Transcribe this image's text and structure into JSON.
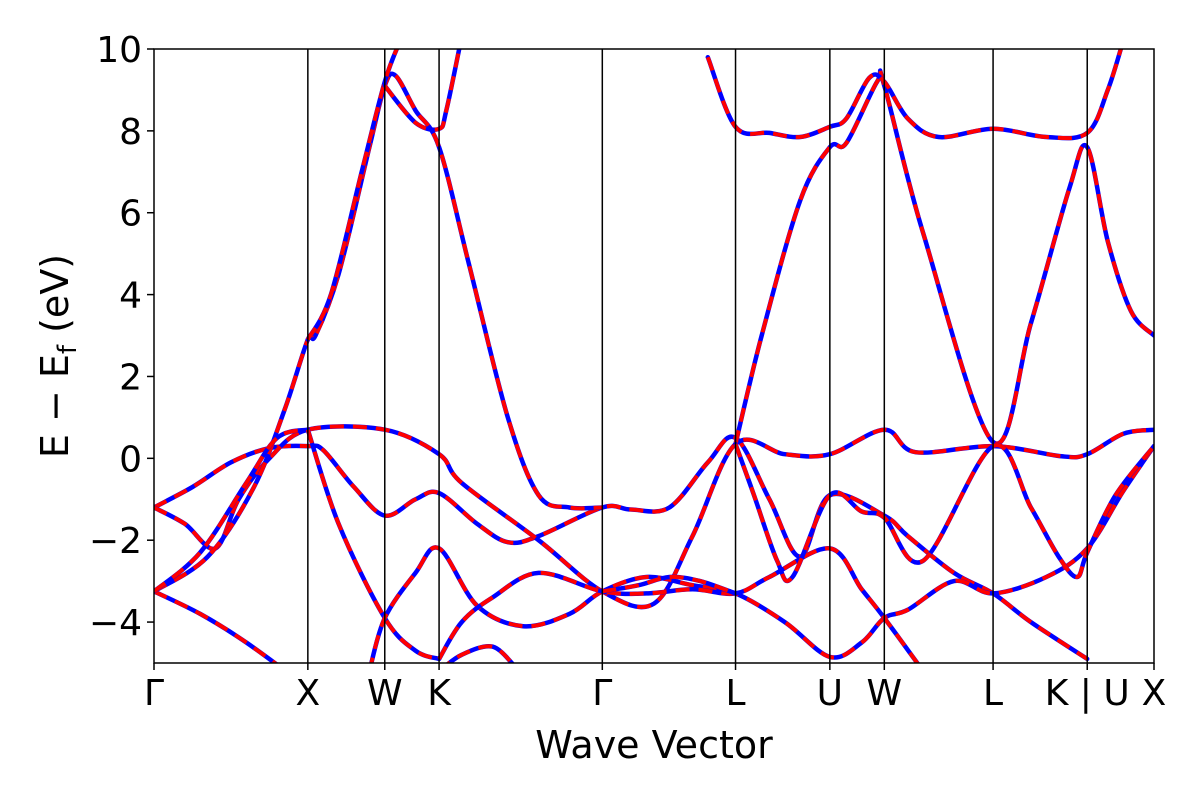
{
  "chart_data": {
    "type": "line",
    "title": "",
    "xlabel": "Wave Vector",
    "ylabel_main": "E − E",
    "ylabel_sub": "f",
    "ylabel_unit": " (eV)",
    "ylim": [
      -5,
      10
    ],
    "y_ticks": [
      10,
      8,
      6,
      4,
      2,
      0,
      -2,
      -4
    ],
    "y_tick_labels": [
      "10",
      "8",
      "6",
      "4",
      "2",
      "0",
      "−2",
      "−4"
    ],
    "x_range": [
      0,
      6.5
    ],
    "kpoints": [
      {
        "label": "Γ",
        "x": 0
      },
      {
        "label": "X",
        "x": 1.0
      },
      {
        "label": "W",
        "x": 1.5
      },
      {
        "label": "K",
        "x": 1.853
      },
      {
        "label": "Γ",
        "x": 2.914
      },
      {
        "label": "L",
        "x": 3.78
      },
      {
        "label": "U",
        "x": 4.393
      },
      {
        "label": "W",
        "x": 4.747
      },
      {
        "label": "L",
        "x": 5.454
      },
      {
        "label": "K | U",
        "x": 6.066
      },
      {
        "label": "X",
        "x": 6.5
      }
    ],
    "grid": false,
    "series_colors": {
      "reference": "#0000ff",
      "overlay": "#ff0000"
    },
    "bands": [
      {
        "points": [
          [
            0,
            -1.2
          ],
          [
            0.25,
            -0.7
          ],
          [
            0.5,
            -0.1
          ],
          [
            0.75,
            0.25
          ],
          [
            1.0,
            0.3
          ],
          [
            1.1,
            0.2
          ],
          [
            1.3,
            -0.7
          ],
          [
            1.5,
            -1.4
          ],
          [
            1.7,
            -1.0
          ],
          [
            1.853,
            -0.85
          ],
          [
            2.1,
            -1.6
          ],
          [
            2.3,
            -2.05
          ],
          [
            2.5,
            -1.9
          ],
          [
            2.914,
            -1.2
          ],
          [
            3.1,
            -1.25
          ],
          [
            3.35,
            -1.2
          ],
          [
            3.6,
            -0.1
          ],
          [
            3.78,
            0.5
          ],
          [
            4.0,
            -1.0
          ],
          [
            4.2,
            -2.4
          ],
          [
            4.393,
            -0.9
          ],
          [
            4.747,
            -1.4
          ],
          [
            4.9,
            -1.9
          ],
          [
            5.2,
            -2.8
          ],
          [
            5.454,
            -3.3
          ],
          [
            5.7,
            -4.0
          ],
          [
            6.066,
            -4.9
          ]
        ]
      },
      {
        "points": [
          [
            0,
            -1.2
          ],
          [
            0.2,
            -1.6
          ],
          [
            0.4,
            -2.2
          ],
          [
            0.55,
            -1.0
          ],
          [
            0.75,
            0.0
          ],
          [
            1.0,
            0.7
          ],
          [
            1.5,
            0.7
          ],
          [
            1.853,
            0.1
          ],
          [
            2.0,
            -0.6
          ],
          [
            2.5,
            -2.0
          ],
          [
            2.914,
            -3.25
          ],
          [
            3.25,
            -3.55
          ],
          [
            3.5,
            -1.9
          ],
          [
            3.78,
            0.35
          ],
          [
            4.1,
            0.1
          ],
          [
            4.393,
            0.1
          ],
          [
            4.747,
            0.7
          ],
          [
            4.95,
            0.15
          ],
          [
            5.454,
            0.3
          ],
          [
            5.9,
            0.05
          ],
          [
            6.066,
            0.1
          ],
          [
            6.3,
            0.6
          ],
          [
            6.5,
            0.7
          ]
        ]
      },
      {
        "points": [
          [
            0,
            -3.25
          ],
          [
            0.35,
            -2.4
          ],
          [
            0.65,
            -0.7
          ],
          [
            0.85,
            1.2
          ],
          [
            1.0,
            2.9
          ],
          [
            1.05,
            3.0
          ],
          [
            1.2,
            4.5
          ],
          [
            1.4,
            7.6
          ],
          [
            1.5,
            9.1
          ],
          [
            1.57,
            9.35
          ],
          [
            1.7,
            8.5
          ],
          [
            1.853,
            7.6
          ],
          [
            2.05,
            4.7
          ],
          [
            2.3,
            1.0
          ],
          [
            2.5,
            -0.9
          ],
          [
            2.7,
            -1.2
          ],
          [
            2.914,
            -1.2
          ]
        ]
      },
      {
        "points": [
          [
            1.0,
            2.9
          ],
          [
            1.15,
            4.0
          ],
          [
            1.35,
            7.0
          ],
          [
            1.5,
            9.2
          ],
          [
            1.6,
            10.2
          ]
        ]
      },
      {
        "points": [
          [
            1.5,
            9.1
          ],
          [
            1.7,
            8.2
          ],
          [
            1.853,
            8.05
          ],
          [
            1.9,
            8.5
          ],
          [
            2.0,
            10.3
          ]
        ]
      },
      {
        "points": [
          [
            3.78,
            0.35
          ],
          [
            3.95,
            3.0
          ],
          [
            4.2,
            6.3
          ],
          [
            4.393,
            7.6
          ],
          [
            4.5,
            7.7
          ],
          [
            4.7,
            9.2
          ],
          [
            4.747,
            9.1
          ],
          [
            5.0,
            5.5
          ],
          [
            5.454,
            0.4
          ],
          [
            5.7,
            3.3
          ],
          [
            5.95,
            6.6
          ],
          [
            6.066,
            7.6
          ],
          [
            6.2,
            5.3
          ],
          [
            6.35,
            3.6
          ],
          [
            6.5,
            3.0
          ]
        ]
      },
      {
        "points": [
          [
            3.6,
            9.8
          ],
          [
            3.78,
            8.1
          ],
          [
            4.0,
            7.95
          ],
          [
            4.2,
            7.85
          ],
          [
            4.393,
            8.1
          ],
          [
            4.5,
            8.3
          ],
          [
            4.65,
            9.3
          ],
          [
            4.747,
            9.2
          ],
          [
            4.9,
            8.3
          ],
          [
            5.1,
            7.85
          ],
          [
            5.454,
            8.05
          ],
          [
            5.8,
            7.85
          ],
          [
            6.066,
            7.95
          ],
          [
            6.2,
            9.0
          ],
          [
            6.3,
            10.2
          ]
        ]
      },
      {
        "points": [
          [
            0,
            -3.25
          ],
          [
            0.3,
            -3.8
          ],
          [
            0.6,
            -4.5
          ],
          [
            1.0,
            -5.6
          ]
        ]
      },
      {
        "points": [
          [
            0,
            -3.25
          ],
          [
            0.3,
            -2.3
          ],
          [
            0.6,
            -0.6
          ],
          [
            0.8,
            0.5
          ],
          [
            1.0,
            0.7
          ]
        ]
      },
      {
        "points": [
          [
            1.0,
            0.7
          ],
          [
            1.2,
            -1.6
          ],
          [
            1.5,
            -3.9
          ],
          [
            1.7,
            -4.7
          ],
          [
            1.853,
            -4.9
          ]
        ]
      },
      {
        "points": [
          [
            1.4,
            -5.2
          ],
          [
            1.5,
            -3.9
          ],
          [
            1.7,
            -2.8
          ],
          [
            1.853,
            -2.2
          ],
          [
            2.1,
            -3.6
          ],
          [
            2.4,
            -4.1
          ],
          [
            2.7,
            -3.8
          ],
          [
            2.914,
            -3.25
          ],
          [
            3.2,
            -2.9
          ],
          [
            3.5,
            -3.1
          ],
          [
            3.78,
            -3.3
          ],
          [
            4.1,
            -4.0
          ],
          [
            4.393,
            -4.85
          ],
          [
            4.6,
            -4.5
          ],
          [
            4.747,
            -3.9
          ],
          [
            4.9,
            -3.7
          ],
          [
            5.2,
            -3.0
          ],
          [
            5.454,
            -3.3
          ],
          [
            5.8,
            -2.9
          ],
          [
            6.066,
            -2.2
          ],
          [
            6.3,
            -0.8
          ],
          [
            6.5,
            0.3
          ]
        ]
      },
      {
        "points": [
          [
            1.853,
            -4.9
          ],
          [
            2.0,
            -4.0
          ],
          [
            2.2,
            -3.4
          ],
          [
            2.5,
            -2.8
          ],
          [
            2.914,
            -3.25
          ],
          [
            3.2,
            -3.3
          ],
          [
            3.5,
            -3.2
          ],
          [
            3.78,
            -3.3
          ],
          [
            4.0,
            -2.9
          ],
          [
            4.393,
            -2.2
          ],
          [
            4.6,
            -3.2
          ],
          [
            4.747,
            -3.9
          ],
          [
            5.0,
            -5.2
          ]
        ]
      },
      {
        "points": [
          [
            1.853,
            -5.2
          ],
          [
            2.0,
            -4.8
          ],
          [
            2.2,
            -4.6
          ],
          [
            2.35,
            -5.1
          ]
        ]
      },
      {
        "points": [
          [
            2.914,
            -3.25
          ],
          [
            3.15,
            -3.1
          ],
          [
            3.35,
            -2.9
          ],
          [
            3.55,
            -3.0
          ],
          [
            3.78,
            -3.3
          ]
        ]
      },
      {
        "points": [
          [
            3.78,
            0.35
          ],
          [
            3.9,
            -0.9
          ],
          [
            4.05,
            -2.5
          ],
          [
            4.15,
            -2.9
          ],
          [
            4.393,
            -0.9
          ],
          [
            4.6,
            -1.3
          ],
          [
            4.747,
            -1.45
          ],
          [
            5.0,
            -2.5
          ],
          [
            5.454,
            0.3
          ],
          [
            5.7,
            -1.2
          ],
          [
            5.88,
            -2.4
          ],
          [
            6.0,
            -2.9
          ],
          [
            6.066,
            -2.3
          ],
          [
            6.25,
            -0.9
          ],
          [
            6.5,
            0.3
          ]
        ]
      }
    ]
  }
}
